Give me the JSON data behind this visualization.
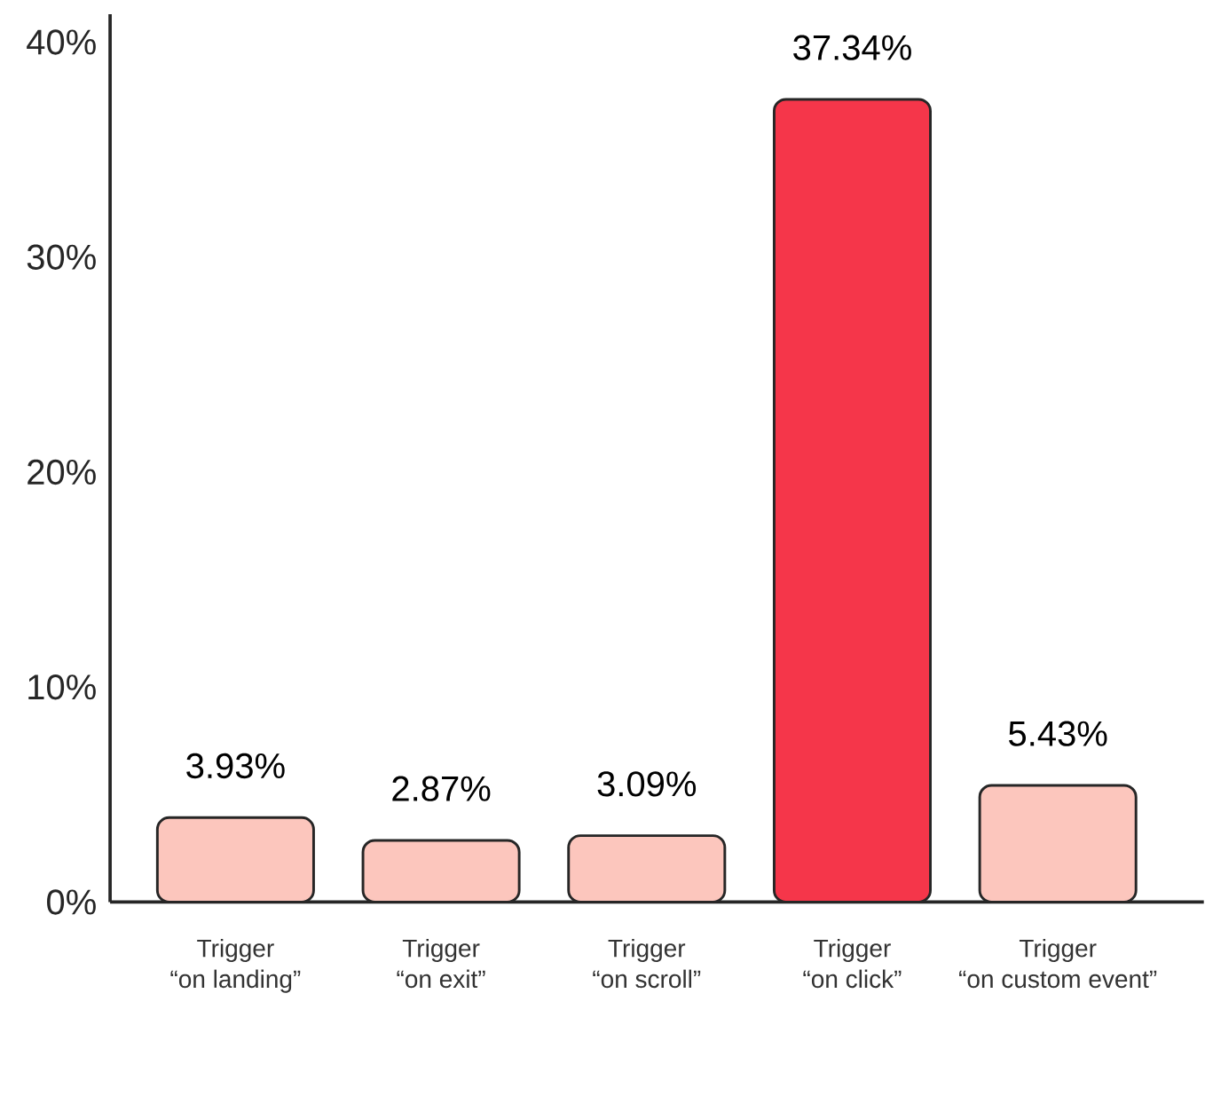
{
  "chart_data": {
    "type": "bar",
    "categories": [
      "Trigger “on landing”",
      "Trigger “on exit”",
      "Trigger “on scroll”",
      "Trigger “on click”",
      "Trigger “on custom event”"
    ],
    "values": [
      3.93,
      2.87,
      3.09,
      37.34,
      5.43
    ],
    "value_labels": [
      "3.93%",
      "2.87%",
      "3.09%",
      "37.34%",
      "5.43%"
    ],
    "colors": [
      "#fcc6bd",
      "#fcc6bd",
      "#fcc6bd",
      "#f5364a",
      "#fcc6bd"
    ],
    "ylim": [
      0,
      41.3
    ],
    "yticks": [
      {
        "value": 0,
        "label": "0%"
      },
      {
        "value": 10,
        "label": "10%"
      },
      {
        "value": 20,
        "label": "20%"
      },
      {
        "value": 30,
        "label": "30%"
      },
      {
        "value": 40,
        "label": "40%"
      }
    ]
  }
}
